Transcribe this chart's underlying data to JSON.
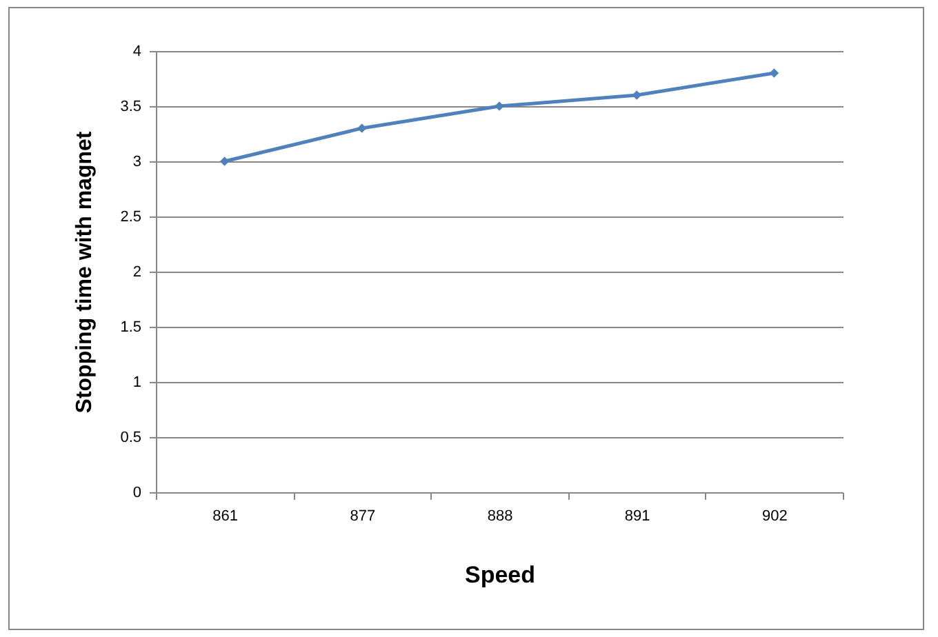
{
  "chart_data": {
    "type": "line",
    "xlabel": "Speed",
    "ylabel": "Stopping time with magnet",
    "categories": [
      "861",
      "877",
      "888",
      "891",
      "902"
    ],
    "series": [
      {
        "color": "#4f81bd",
        "values": [
          3,
          3.3,
          3.5,
          3.6,
          3.8
        ]
      }
    ],
    "ylim": [
      0,
      4
    ],
    "yticks": [
      0,
      0.5,
      1,
      1.5,
      2,
      2.5,
      3,
      3.5,
      4
    ],
    "grid": "y",
    "marker": "diamond",
    "line_style": "solid"
  }
}
